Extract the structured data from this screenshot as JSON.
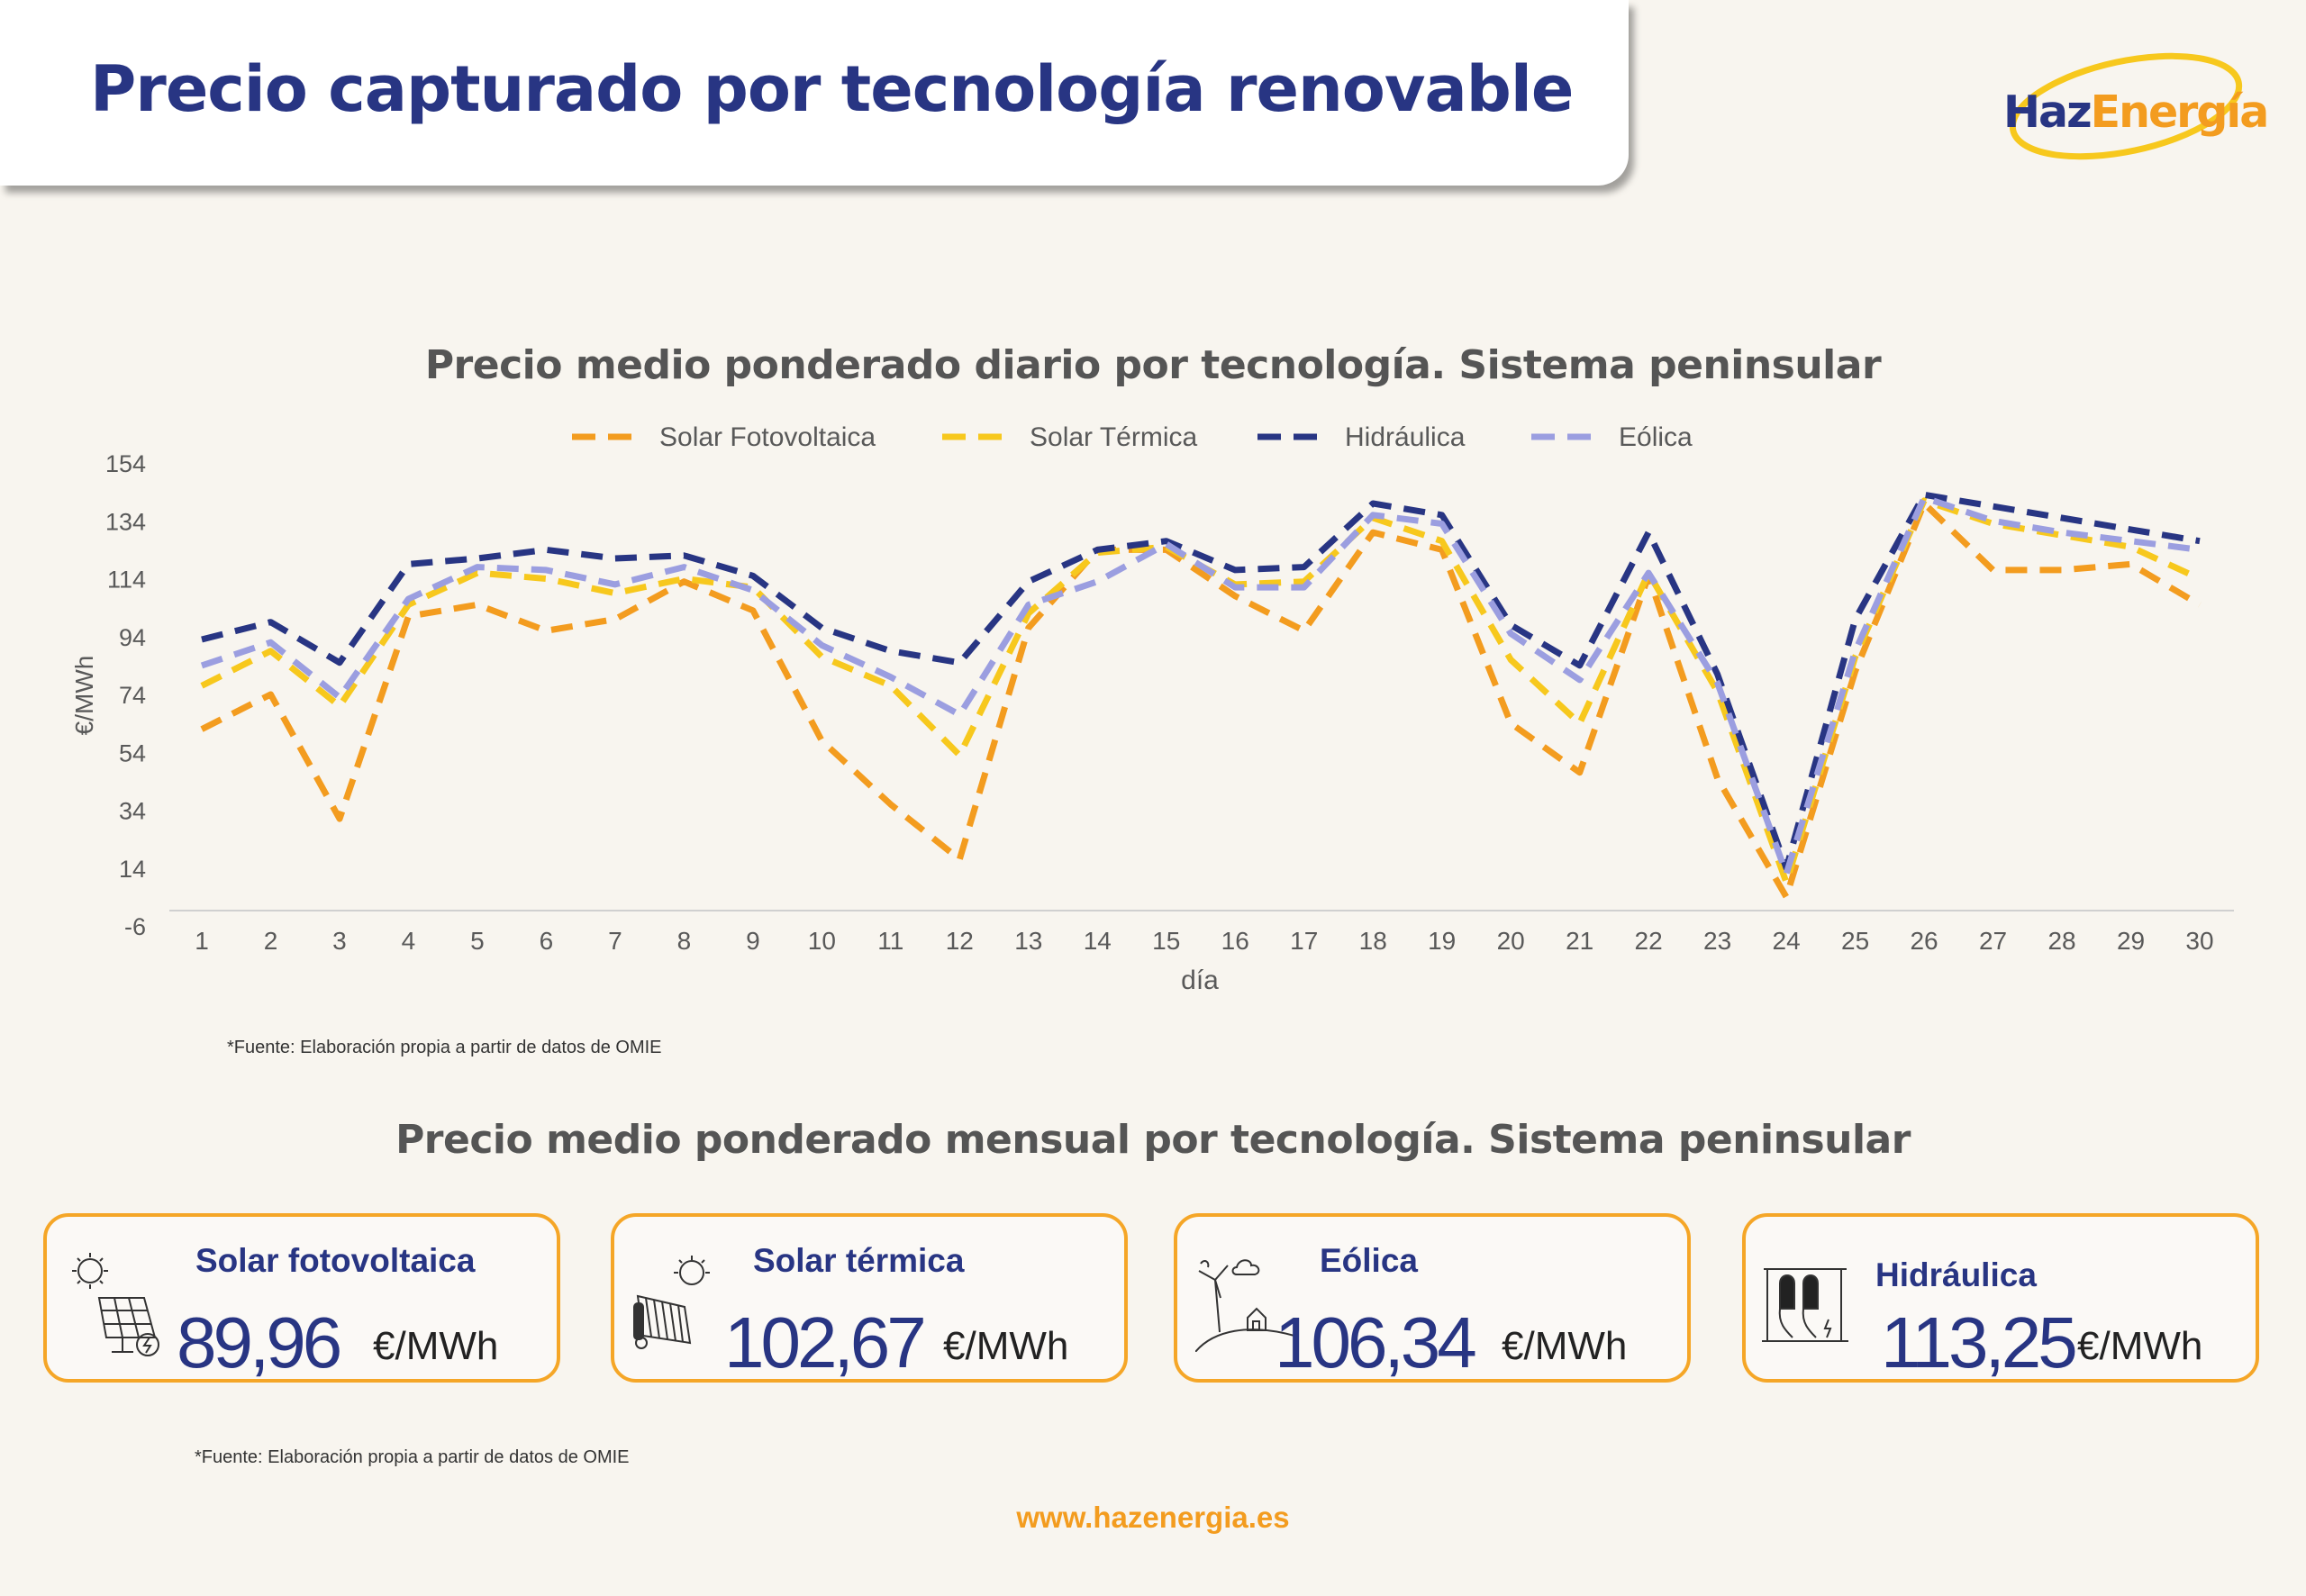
{
  "header": {
    "title": "Precio capturado por tecnología renovable",
    "logo_part1": "Haz",
    "logo_part2": "Energía"
  },
  "chart_data": {
    "type": "line",
    "title": "Precio medio ponderado diario por tecnología. Sistema peninsular",
    "xlabel": "día",
    "ylabel": "€/MWh",
    "ylim": [
      -6,
      154
    ],
    "yticks": [
      -6,
      14,
      34,
      54,
      74,
      94,
      114,
      134,
      154
    ],
    "categories": [
      "1",
      "2",
      "3",
      "4",
      "5",
      "6",
      "7",
      "8",
      "9",
      "10",
      "11",
      "12",
      "13",
      "14",
      "15",
      "16",
      "17",
      "18",
      "19",
      "20",
      "21",
      "22",
      "23",
      "24",
      "25",
      "26",
      "27",
      "28",
      "29",
      "30"
    ],
    "legend_position": "top",
    "grid": false,
    "series": [
      {
        "name": "Solar Fotovoltaica",
        "color": "#f39c1f",
        "values": [
          62,
          74,
          31,
          101,
          105,
          96,
          100,
          113,
          103,
          58,
          36,
          17,
          97,
          124,
          124,
          108,
          96,
          130,
          124,
          64,
          47,
          115,
          45,
          4,
          82,
          140,
          117,
          117,
          119,
          105
        ]
      },
      {
        "name": "Solar Térmica",
        "color": "#f7c81d",
        "values": [
          77,
          89,
          70,
          105,
          116,
          114,
          109,
          114,
          111,
          87,
          77,
          53,
          102,
          123,
          125,
          112,
          113,
          135,
          127,
          86,
          64,
          116,
          75,
          9,
          87,
          141,
          133,
          129,
          125,
          114
        ]
      },
      {
        "name": "Hidráulica",
        "color": "#283583",
        "values": [
          93,
          99,
          85,
          119,
          121,
          124,
          121,
          122,
          115,
          97,
          89,
          85,
          113,
          124,
          127,
          117,
          118,
          140,
          136,
          98,
          84,
          130,
          81,
          14,
          100,
          143,
          139,
          135,
          131,
          127
        ]
      },
      {
        "name": "Eólica",
        "color": "#9b9ee0",
        "values": [
          84,
          92,
          73,
          107,
          118,
          117,
          112,
          118,
          110,
          91,
          80,
          67,
          105,
          113,
          126,
          111,
          111,
          136,
          133,
          95,
          79,
          116,
          78,
          12,
          89,
          142,
          134,
          130,
          127,
          124
        ]
      }
    ],
    "source_note": "*Fuente:  Elaboración propia a partir de datos de OMIE"
  },
  "monthly": {
    "title": "Precio medio ponderado mensual por tecnología. Sistema peninsular",
    "cards": [
      {
        "label": "Solar fotovoltaica",
        "value": "89,96",
        "unit": "€/MWh",
        "icon": "solar-panel-icon"
      },
      {
        "label": "Solar térmica",
        "value": "102,67",
        "unit": "€/MWh",
        "icon": "solar-thermal-icon"
      },
      {
        "label": "Eólica",
        "value": "106,34",
        "unit": "€/MWh",
        "icon": "wind-turbine-icon"
      },
      {
        "label": "Hidráulica",
        "value": "113,25",
        "unit": "€/MWh",
        "icon": "dam-icon"
      }
    ],
    "source_note": "*Fuente:  Elaboración propia a partir de datos de OMIE"
  },
  "footer": {
    "website": "www.hazenergia.es"
  },
  "colors": {
    "brand_blue": "#283583",
    "brand_orange": "#f39c1f",
    "background": "#f8f5ef"
  }
}
